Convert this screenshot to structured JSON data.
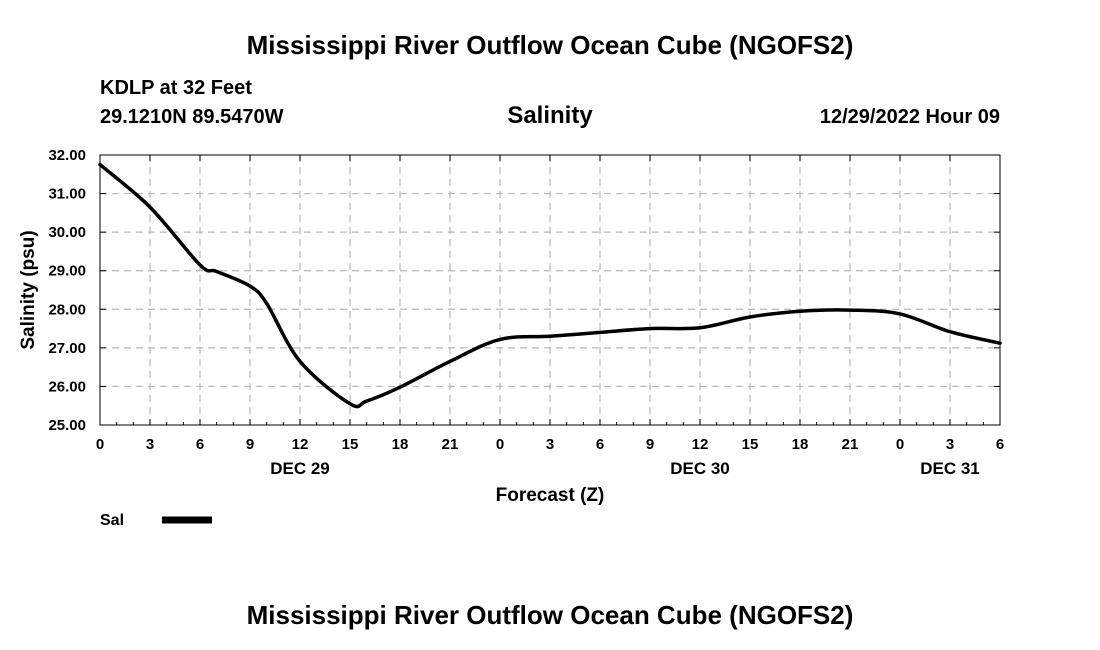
{
  "header": {
    "main_title": "Mississippi River Outflow Ocean Cube (NGOFS2)",
    "station": "KDLP at 32 Feet",
    "coords": "29.1210N  89.5470W",
    "chart_name": "Salinity",
    "run_time": "12/29/2022 Hour 09"
  },
  "footer": {
    "title": "Mississippi River Outflow Ocean Cube (NGOFS2)"
  },
  "chart_data": {
    "type": "line",
    "title": "Salinity",
    "xlabel": "Forecast (Z)",
    "ylabel": "Salinity (psu)",
    "xlim": [
      0,
      54
    ],
    "ylim": [
      25,
      32
    ],
    "grid": true,
    "x_ticks": [
      {
        "x": 0,
        "label": "0"
      },
      {
        "x": 3,
        "label": "3"
      },
      {
        "x": 6,
        "label": "6"
      },
      {
        "x": 9,
        "label": "9"
      },
      {
        "x": 12,
        "label": "12"
      },
      {
        "x": 15,
        "label": "15"
      },
      {
        "x": 18,
        "label": "18"
      },
      {
        "x": 21,
        "label": "21"
      },
      {
        "x": 24,
        "label": "0"
      },
      {
        "x": 27,
        "label": "3"
      },
      {
        "x": 30,
        "label": "6"
      },
      {
        "x": 33,
        "label": "9"
      },
      {
        "x": 36,
        "label": "12"
      },
      {
        "x": 39,
        "label": "15"
      },
      {
        "x": 42,
        "label": "18"
      },
      {
        "x": 45,
        "label": "21"
      },
      {
        "x": 48,
        "label": "0"
      },
      {
        "x": 51,
        "label": "3"
      },
      {
        "x": 54,
        "label": "6"
      }
    ],
    "day_labels": [
      {
        "x": 12,
        "label": "DEC 29"
      },
      {
        "x": 36,
        "label": "DEC 30"
      },
      {
        "x": 51,
        "label": "DEC 31"
      }
    ],
    "y_ticks": [
      {
        "y": 25,
        "label": "25.00"
      },
      {
        "y": 26,
        "label": "26.00"
      },
      {
        "y": 27,
        "label": "27.00"
      },
      {
        "y": 28,
        "label": "28.00"
      },
      {
        "y": 29,
        "label": "29.00"
      },
      {
        "y": 30,
        "label": "30.00"
      },
      {
        "y": 31,
        "label": "31.00"
      },
      {
        "y": 32,
        "label": "32.00"
      }
    ],
    "series": [
      {
        "name": "Sal",
        "color": "#000000",
        "x": [
          0,
          3,
          6,
          7,
          9,
          10,
          12,
          15,
          16,
          18,
          21,
          24,
          27,
          30,
          33,
          36,
          39,
          42,
          45,
          48,
          51,
          54
        ],
        "y": [
          31.75,
          30.65,
          29.15,
          28.98,
          28.6,
          28.15,
          26.65,
          25.55,
          25.62,
          25.98,
          26.65,
          27.22,
          27.3,
          27.4,
          27.5,
          27.52,
          27.8,
          27.95,
          27.98,
          27.88,
          27.42,
          27.12
        ]
      }
    ],
    "legend": {
      "label": "Sal",
      "position": "bottom-left"
    }
  }
}
